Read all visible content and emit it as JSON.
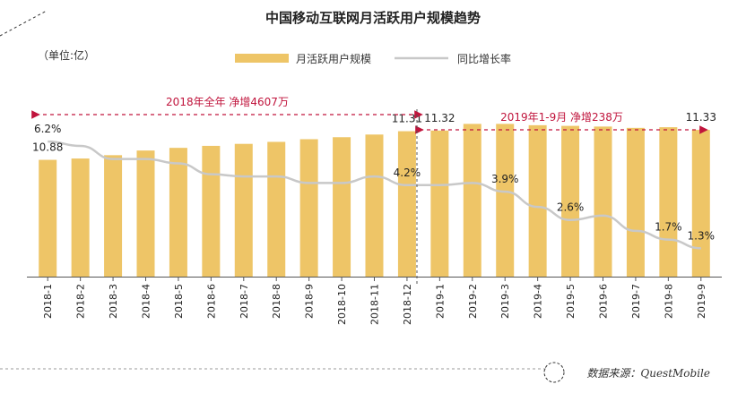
{
  "chart_data": {
    "type": "bar",
    "title": "中国移动互联网月活跃用户规模趋势",
    "unit_label": "（单位:亿）",
    "categories": [
      "2018-1",
      "2018-2",
      "2018-3",
      "2018-4",
      "2018-5",
      "2018-6",
      "2018-7",
      "2018-8",
      "2018-9",
      "2018-10",
      "2018-11",
      "2018-12",
      "2019-1",
      "2019-2",
      "2019-3",
      "2019-4",
      "2019-5",
      "2019-6",
      "2019-7",
      "2019-8",
      "2019-9"
    ],
    "series": [
      {
        "name": "月活跃用户规模",
        "type": "bar",
        "color": "#EEC567",
        "values": [
          10.88,
          10.9,
          10.95,
          11.02,
          11.06,
          11.09,
          11.12,
          11.15,
          11.19,
          11.22,
          11.26,
          11.31,
          11.32,
          11.42,
          11.42,
          11.4,
          11.39,
          11.38,
          11.36,
          11.37,
          11.33
        ]
      },
      {
        "name": "同比增长率",
        "type": "line",
        "color": "#C8C8C8",
        "values": [
          6.2,
          6.0,
          5.4,
          5.4,
          5.2,
          4.7,
          4.6,
          4.6,
          4.3,
          4.3,
          4.6,
          4.2,
          4.2,
          4.3,
          3.9,
          3.2,
          2.6,
          2.8,
          2.1,
          1.7,
          1.3
        ]
      }
    ],
    "bar_value_labels": [
      {
        "index": 0,
        "text": "10.88"
      },
      {
        "index": 11,
        "text": "11.31"
      },
      {
        "index": 12,
        "text": "11.32"
      },
      {
        "index": 20,
        "text": "11.33"
      }
    ],
    "line_value_labels": [
      {
        "index": 0,
        "text": "6.2%"
      },
      {
        "index": 11,
        "text": "4.2%"
      },
      {
        "index": 14,
        "text": "3.9%"
      },
      {
        "index": 16,
        "text": "2.6%"
      },
      {
        "index": 19,
        "text": "1.7%"
      },
      {
        "index": 20,
        "text": "1.3%"
      }
    ],
    "annotations": [
      {
        "text": "2018年全年 净增4607万",
        "from": 0,
        "to": 11
      },
      {
        "text": "2019年1-9月 净增238万",
        "from": 12,
        "to": 20
      }
    ],
    "ylim_bar": [
      10.0,
      11.6
    ],
    "ylim_line": [
      0,
      9
    ],
    "legend_position": "top-center",
    "grid": false,
    "source": "数据来源：QuestMobile",
    "accent_color": "#C0143C"
  }
}
